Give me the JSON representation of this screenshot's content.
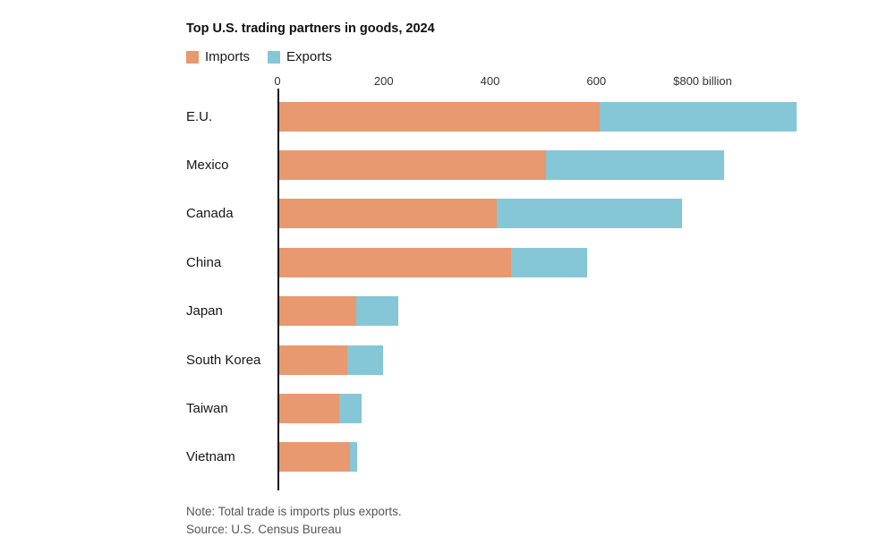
{
  "title": "Top U.S. trading partners in goods, 2024",
  "legend": {
    "imports_label": "Imports",
    "exports_label": "Exports"
  },
  "colors": {
    "imports": "#E8996F",
    "exports": "#85C7D6",
    "axis": "#0f0f0f"
  },
  "chart_data": {
    "type": "bar",
    "orientation": "horizontal",
    "stacked": true,
    "title": "Top U.S. trading partners in goods, 2024",
    "unit": "billion USD",
    "categories": [
      "E.U.",
      "Mexico",
      "Canada",
      "China",
      "Japan",
      "South Korea",
      "Taiwan",
      "Vietnam"
    ],
    "series": [
      {
        "name": "Imports",
        "values": [
          606,
          506,
          413,
          439,
          148,
          132,
          116,
          137
        ]
      },
      {
        "name": "Exports",
        "values": [
          370,
          334,
          349,
          144,
          80,
          66,
          42,
          13
        ]
      }
    ],
    "x_ticks": [
      {
        "value": 0,
        "label": "0"
      },
      {
        "value": 200,
        "label": "200"
      },
      {
        "value": 400,
        "label": "400"
      },
      {
        "value": 600,
        "label": "600"
      },
      {
        "value": 800,
        "label": "$800 billion"
      }
    ],
    "xlim": [
      0,
      980
    ],
    "grid": false,
    "legend_position": "top-left"
  },
  "notes": {
    "note": "Note: Total trade is imports plus exports.",
    "source": "Source: U.S. Census Bureau"
  }
}
